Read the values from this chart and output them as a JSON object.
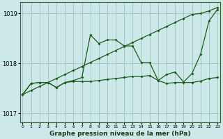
{
  "bg_color": "#cce8e8",
  "grid_color": "#99bbbb",
  "line_color": "#1a5c1a",
  "xlabel": "Graphe pression niveau de la mer (hPa)",
  "ylim": [
    1016.82,
    1019.22
  ],
  "xlim": [
    -0.3,
    23.3
  ],
  "yticks": [
    1017,
    1018,
    1019
  ],
  "line_jagged_x": [
    0,
    1,
    2,
    3,
    4,
    5,
    6,
    7,
    8,
    9,
    10,
    11,
    12,
    13,
    14,
    15,
    16,
    17,
    18,
    19,
    20,
    21,
    22,
    23
  ],
  "line_jagged_y": [
    1017.38,
    1017.6,
    1017.62,
    1017.62,
    1017.52,
    1017.62,
    1017.66,
    1017.72,
    1018.57,
    1018.4,
    1018.47,
    1018.47,
    1018.35,
    1018.35,
    1018.02,
    1018.02,
    1017.66,
    1017.78,
    1017.83,
    1017.63,
    1017.8,
    1018.18,
    1018.85,
    1019.08
  ],
  "line_diagonal_x": [
    0,
    1,
    2,
    3,
    4,
    5,
    6,
    7,
    8,
    9,
    10,
    11,
    12,
    13,
    14,
    15,
    16,
    17,
    18,
    19,
    20,
    21,
    22,
    23
  ],
  "line_diagonal_y": [
    1017.38,
    1017.46,
    1017.54,
    1017.62,
    1017.7,
    1017.78,
    1017.86,
    1017.94,
    1018.02,
    1018.1,
    1018.18,
    1018.26,
    1018.34,
    1018.42,
    1018.5,
    1018.58,
    1018.66,
    1018.74,
    1018.82,
    1018.9,
    1018.98,
    1019.0,
    1019.05,
    1019.12
  ],
  "line_flat_x": [
    0,
    1,
    2,
    3,
    4,
    5,
    6,
    7,
    8,
    9,
    10,
    11,
    12,
    13,
    14,
    15,
    16,
    17,
    18,
    19,
    20,
    21,
    22,
    23
  ],
  "line_flat_y": [
    1017.38,
    1017.6,
    1017.62,
    1017.62,
    1017.52,
    1017.62,
    1017.64,
    1017.64,
    1017.64,
    1017.66,
    1017.68,
    1017.7,
    1017.72,
    1017.74,
    1017.74,
    1017.76,
    1017.66,
    1017.6,
    1017.62,
    1017.62,
    1017.62,
    1017.65,
    1017.7,
    1017.72
  ]
}
